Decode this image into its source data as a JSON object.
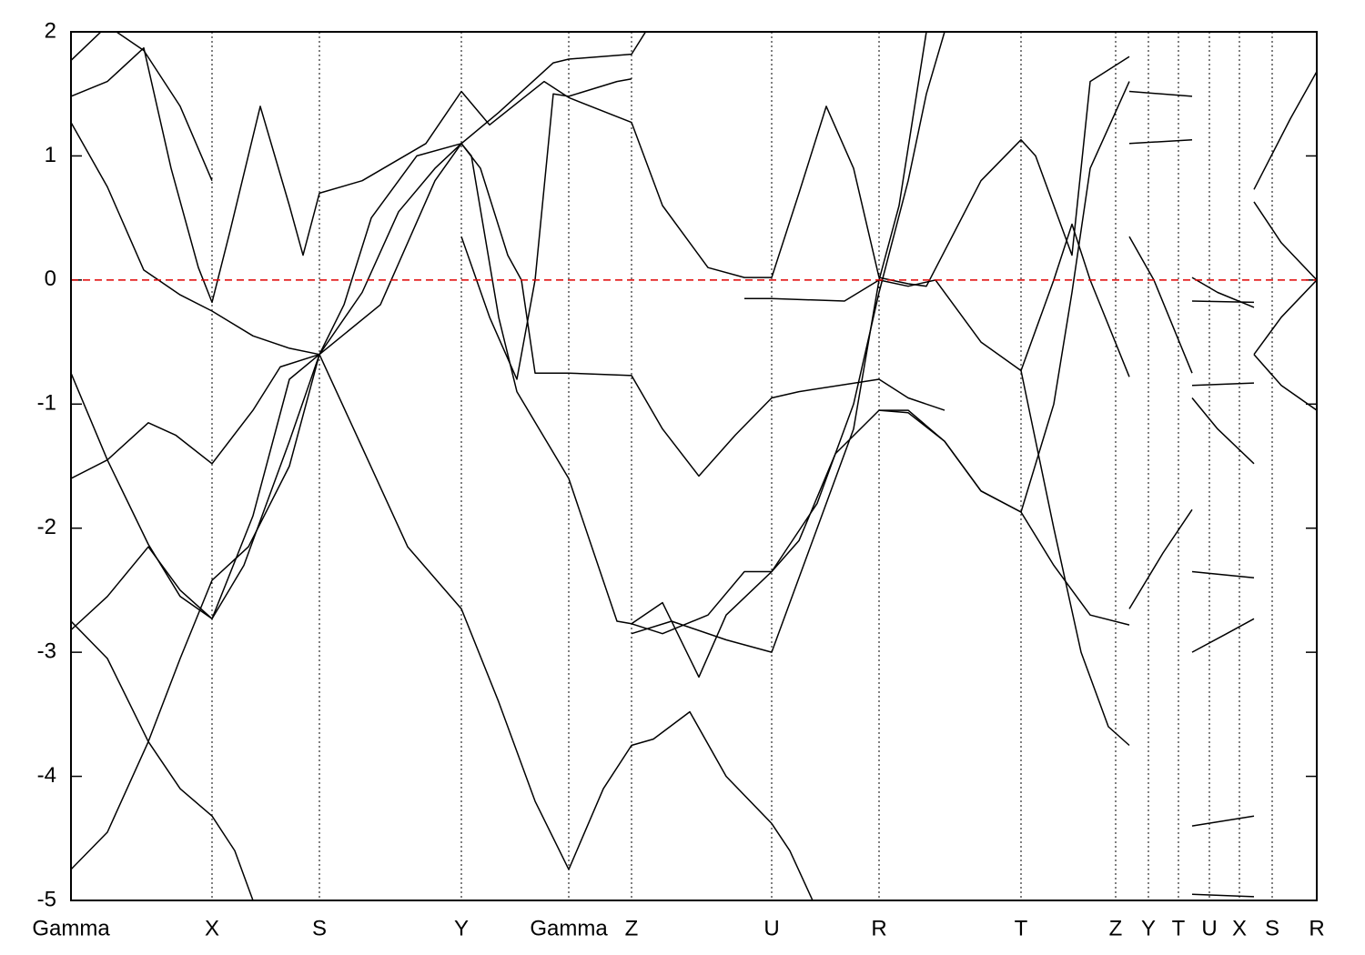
{
  "chart_data": {
    "type": "line",
    "color": "#000000",
    "xlim": [
      0,
      1369
    ],
    "ylim": [
      -5,
      2
    ],
    "yticks": [
      -5,
      -4,
      -3,
      -2,
      -1,
      0,
      1,
      2
    ],
    "xticks": [
      {
        "value": 0,
        "label": "Gamma"
      },
      {
        "value": 155,
        "label": "X"
      },
      {
        "value": 273,
        "label": "S"
      },
      {
        "value": 429,
        "label": "Y"
      },
      {
        "value": 547,
        "label": "Gamma"
      },
      {
        "value": 616,
        "label": "Z"
      },
      {
        "value": 770,
        "label": "U"
      },
      {
        "value": 888,
        "label": "R"
      },
      {
        "value": 1044,
        "label": "T"
      },
      {
        "value": 1148,
        "label": "Z"
      },
      {
        "value": 1184,
        "label": "Y"
      },
      {
        "value": 1217,
        "label": "T"
      },
      {
        "value": 1251,
        "label": "U"
      },
      {
        "value": 1284,
        "label": "X"
      },
      {
        "value": 1320,
        "label": "S"
      },
      {
        "value": 1369,
        "label": "R"
      }
    ],
    "grid": true,
    "reference_line": {
      "value": 0,
      "color": "#e00000"
    },
    "series": [
      {
        "x": [
          0,
          40,
          85,
          120,
          155,
          195,
          240,
          273,
          320,
          370,
          429,
          470,
          510,
          547,
          585,
          616,
          640,
          680,
          720,
          770,
          790,
          815
        ],
        "values": [
          -4.75,
          -4.45,
          -3.72,
          -3.05,
          -2.42,
          -2.15,
          -1.5,
          -0.6,
          -1.35,
          -2.15,
          -2.65,
          -3.4,
          -4.2,
          -4.75,
          -4.1,
          -3.75,
          -3.7,
          -3.48,
          -4.0,
          -4.38,
          -4.6,
          -5.0
        ]
      },
      {
        "x": [
          0,
          40,
          85,
          120,
          155,
          180,
          200
        ],
        "values": [
          -2.75,
          -3.05,
          -3.72,
          -4.1,
          -4.32,
          -4.6,
          -5.0
        ]
      },
      {
        "x": [
          0,
          40,
          85,
          120,
          155,
          200,
          240,
          273,
          300,
          330,
          380,
          429,
          440,
          470,
          490,
          547,
          570,
          600,
          616,
          650,
          690,
          720,
          770,
          800,
          840,
          888,
          920,
          960,
          1000,
          1044,
          1080,
          1120,
          1163
        ],
        "values": [
          -2.82,
          -2.55,
          -2.15,
          -2.5,
          -2.73,
          -1.9,
          -0.8,
          -0.6,
          -0.2,
          0.5,
          1.0,
          1.1,
          1.0,
          -0.3,
          -0.9,
          -1.6,
          -2.1,
          -2.75,
          -2.77,
          -2.6,
          -3.2,
          -2.7,
          -2.35,
          -2.1,
          -1.4,
          -1.05,
          -1.05,
          -1.3,
          -1.7,
          -1.87,
          -2.3,
          -2.7,
          -2.78
        ]
      },
      {
        "x": [
          0,
          40,
          85,
          115,
          155,
          200,
          230,
          273,
          340,
          400,
          429,
          470,
          530,
          547,
          616,
          640
        ],
        "values": [
          -1.6,
          -1.45,
          -1.15,
          -1.25,
          -1.48,
          -1.05,
          -0.7,
          -0.6,
          -0.2,
          0.8,
          1.1,
          1.35,
          1.75,
          1.78,
          1.82,
          2.1
        ]
      },
      {
        "x": [
          0,
          40,
          80,
          120,
          155,
          200,
          240,
          273,
          320,
          360,
          400,
          429,
          450,
          480,
          495,
          510,
          547,
          616,
          650,
          690,
          730,
          770,
          800,
          888,
          920,
          960
        ],
        "values": [
          1.27,
          0.75,
          0.08,
          -0.12,
          -0.25,
          -0.45,
          -0.55,
          -0.6,
          -0.1,
          0.55,
          0.9,
          1.1,
          0.9,
          0.2,
          0.0,
          -0.75,
          -0.75,
          -0.77,
          -1.2,
          -1.58,
          -1.25,
          -0.95,
          -0.9,
          -0.8,
          -0.95,
          -1.05
        ]
      },
      {
        "x": [
          0,
          40,
          80,
          110,
          140,
          155,
          175,
          208,
          240,
          255,
          273,
          320,
          390,
          429,
          460,
          520,
          547,
          616,
          650,
          700,
          740,
          770,
          800,
          830,
          860,
          888,
          920,
          940,
          1000,
          1044,
          1060,
          1100,
          1120,
          1163
        ],
        "values": [
          1.48,
          1.6,
          1.87,
          0.9,
          0.1,
          -0.18,
          0.4,
          1.4,
          0.6,
          0.2,
          0.7,
          0.8,
          1.1,
          1.52,
          1.25,
          1.6,
          1.47,
          1.27,
          0.6,
          0.1,
          0.02,
          0.02,
          0.7,
          1.4,
          0.9,
          0.02,
          -0.03,
          -0.05,
          0.8,
          1.13,
          1.0,
          0.2,
          1.6,
          1.8
        ]
      },
      {
        "x": [
          0,
          40,
          80,
          120,
          155
        ],
        "values": [
          1.77,
          2.05,
          1.85,
          1.4,
          0.8
        ]
      },
      {
        "x": [
          0,
          40,
          85,
          120,
          155,
          190,
          240,
          273
        ],
        "values": [
          -0.75,
          -1.45,
          -2.13,
          -2.55,
          -2.73,
          -2.3,
          -1.3,
          -0.6
        ]
      },
      {
        "x": [
          429,
          460,
          490,
          510,
          530,
          547,
          600,
          616
        ],
        "values": [
          0.35,
          -0.3,
          -0.8,
          0.0,
          1.5,
          1.48,
          1.6,
          1.62
        ]
      },
      {
        "x": [
          616,
          650,
          700,
          740,
          770,
          820,
          860,
          888,
          920,
          940,
          960
        ],
        "values": [
          -2.77,
          -2.85,
          -2.7,
          -2.35,
          -2.35,
          -1.8,
          -1.0,
          -0.1,
          0.8,
          1.5,
          2.0
        ]
      },
      {
        "x": [
          616,
          660,
          720,
          770,
          820,
          860,
          888,
          910,
          940
        ],
        "values": [
          -2.85,
          -2.75,
          -2.9,
          -3.0,
          -2.0,
          -1.2,
          0.0,
          0.6,
          2.0
        ]
      },
      {
        "x": [
          740,
          770,
          850,
          888,
          920,
          950,
          1000,
          1044,
          1080,
          1100,
          1120,
          1163
        ],
        "values": [
          -0.15,
          -0.15,
          -0.17,
          0.0,
          -0.05,
          0.0,
          -0.5,
          -0.73,
          0.0,
          0.45,
          0.0,
          -0.78
        ]
      },
      {
        "x": [
          888,
          920,
          960,
          1000,
          1044,
          1080,
          1100,
          1120,
          1163
        ],
        "values": [
          -1.05,
          -1.07,
          -1.3,
          -1.7,
          -1.87,
          -1.0,
          -0.1,
          0.9,
          1.6
        ]
      },
      {
        "x": [
          1044,
          1080,
          1110,
          1140,
          1163
        ],
        "values": [
          -0.73,
          -2.0,
          -3.0,
          -3.6,
          -3.75
        ]
      },
      {
        "x": [
          1163,
          1232
        ],
        "values": [
          1.1,
          1.13
        ]
      },
      {
        "x": [
          1163,
          1232
        ],
        "values": [
          1.52,
          1.48
        ]
      },
      {
        "x": [
          1163,
          1190,
          1232
        ],
        "values": [
          0.35,
          0.0,
          -0.75
        ]
      },
      {
        "x": [
          1163,
          1200,
          1232
        ],
        "values": [
          -2.65,
          -2.2,
          -1.85
        ]
      },
      {
        "x": [
          1232,
          1260,
          1300
        ],
        "values": [
          0.02,
          -0.1,
          -0.22
        ]
      },
      {
        "x": [
          1232,
          1300
        ],
        "values": [
          -0.17,
          -0.18
        ]
      },
      {
        "x": [
          1232,
          1300
        ],
        "values": [
          -0.85,
          -0.83
        ]
      },
      {
        "x": [
          1232,
          1260,
          1300
        ],
        "values": [
          -0.95,
          -1.2,
          -1.48
        ]
      },
      {
        "x": [
          1232,
          1300
        ],
        "values": [
          -2.35,
          -2.4
        ]
      },
      {
        "x": [
          1232,
          1270,
          1300
        ],
        "values": [
          -3.0,
          -2.85,
          -2.73
        ]
      },
      {
        "x": [
          1232,
          1300
        ],
        "values": [
          -4.4,
          -4.32
        ]
      },
      {
        "x": [
          1232,
          1300
        ],
        "values": [
          -4.95,
          -4.97
        ]
      },
      {
        "x": [
          1300,
          1340,
          1369
        ],
        "values": [
          0.73,
          1.3,
          1.68
        ]
      },
      {
        "x": [
          1300,
          1330,
          1369
        ],
        "values": [
          0.63,
          0.3,
          0.0
        ]
      },
      {
        "x": [
          1300,
          1330,
          1369
        ],
        "values": [
          -0.6,
          -0.3,
          0.0
        ]
      },
      {
        "x": [
          1300,
          1330,
          1369
        ],
        "values": [
          -0.6,
          -0.85,
          -1.05
        ]
      }
    ]
  }
}
